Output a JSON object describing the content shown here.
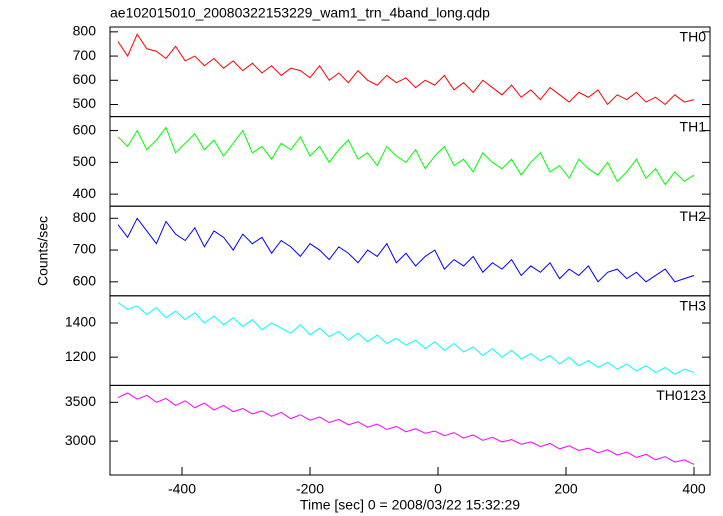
{
  "title": "ae102015010_20080322153229_wam1_trn_4band_long.qdp",
  "x_label": "Time [sec] 0 = 2008/03/22 15:32:29",
  "y_label": "Counts/sec",
  "chart_data": [
    {
      "type": "line",
      "xlim": [
        -512.5,
        425
      ],
      "ylim": [
        450,
        820
      ],
      "yticks": [
        500,
        600,
        700,
        800
      ],
      "x": [
        -500,
        -485,
        -470,
        -455,
        -440,
        -425,
        -410,
        -395,
        -380,
        -365,
        -350,
        -335,
        -320,
        -305,
        -290,
        -275,
        -260,
        -245,
        -230,
        -215,
        -200,
        -185,
        -170,
        -155,
        -140,
        -125,
        -110,
        -95,
        -80,
        -65,
        -50,
        -35,
        -20,
        -5,
        10,
        25,
        40,
        55,
        70,
        85,
        100,
        115,
        130,
        145,
        160,
        175,
        190,
        205,
        220,
        235,
        250,
        265,
        280,
        295,
        310,
        325,
        340,
        355,
        370,
        385,
        400
      ],
      "series": [
        {
          "name": "TH0",
          "color": "#ff0000",
          "values": [
            760,
            700,
            790,
            730,
            720,
            690,
            740,
            680,
            700,
            660,
            690,
            650,
            680,
            640,
            670,
            630,
            660,
            620,
            650,
            640,
            610,
            660,
            600,
            630,
            590,
            640,
            600,
            580,
            620,
            590,
            610,
            570,
            600,
            580,
            620,
            560,
            590,
            550,
            600,
            570,
            540,
            580,
            530,
            560,
            520,
            570,
            540,
            510,
            550,
            530,
            560,
            500,
            540,
            520,
            550,
            510,
            530,
            500,
            540,
            510,
            520
          ]
        }
      ]
    },
    {
      "type": "line",
      "xlim": [
        -512.5,
        425
      ],
      "ylim": [
        362,
        644
      ],
      "yticks": [
        400,
        500,
        600
      ],
      "x": [
        -500,
        -485,
        -470,
        -455,
        -440,
        -425,
        -410,
        -395,
        -380,
        -365,
        -350,
        -335,
        -320,
        -305,
        -290,
        -275,
        -260,
        -245,
        -230,
        -215,
        -200,
        -185,
        -170,
        -155,
        -140,
        -125,
        -110,
        -95,
        -80,
        -65,
        -50,
        -35,
        -20,
        -5,
        10,
        25,
        40,
        55,
        70,
        85,
        100,
        115,
        130,
        145,
        160,
        175,
        190,
        205,
        220,
        235,
        250,
        265,
        280,
        295,
        310,
        325,
        340,
        355,
        370,
        385,
        400
      ],
      "series": [
        {
          "name": "TH1",
          "color": "#00ff00",
          "values": [
            580,
            550,
            600,
            540,
            570,
            610,
            530,
            560,
            590,
            540,
            570,
            520,
            560,
            600,
            530,
            550,
            510,
            560,
            540,
            580,
            520,
            550,
            500,
            540,
            570,
            510,
            530,
            490,
            550,
            520,
            500,
            540,
            480,
            520,
            550,
            490,
            510,
            470,
            530,
            500,
            480,
            510,
            460,
            500,
            530,
            470,
            490,
            450,
            510,
            480,
            460,
            500,
            440,
            470,
            510,
            450,
            480,
            430,
            470,
            440,
            460
          ]
        }
      ]
    },
    {
      "type": "line",
      "xlim": [
        -512.5,
        425
      ],
      "ylim": [
        556,
        838
      ],
      "yticks": [
        600,
        700,
        800
      ],
      "x": [
        -500,
        -485,
        -470,
        -455,
        -440,
        -425,
        -410,
        -395,
        -380,
        -365,
        -350,
        -335,
        -320,
        -305,
        -290,
        -275,
        -260,
        -245,
        -230,
        -215,
        -200,
        -185,
        -170,
        -155,
        -140,
        -125,
        -110,
        -95,
        -80,
        -65,
        -50,
        -35,
        -20,
        -5,
        10,
        25,
        40,
        55,
        70,
        85,
        100,
        115,
        130,
        145,
        160,
        175,
        190,
        205,
        220,
        235,
        250,
        265,
        280,
        295,
        310,
        325,
        340,
        355,
        370,
        385,
        400
      ],
      "series": [
        {
          "name": "TH2",
          "color": "#0000ff",
          "values": [
            780,
            740,
            800,
            760,
            720,
            790,
            750,
            730,
            770,
            710,
            760,
            740,
            700,
            750,
            720,
            740,
            690,
            730,
            710,
            680,
            720,
            700,
            670,
            710,
            690,
            660,
            700,
            680,
            720,
            660,
            690,
            650,
            680,
            700,
            640,
            670,
            650,
            680,
            630,
            660,
            640,
            670,
            620,
            650,
            630,
            660,
            610,
            640,
            620,
            650,
            600,
            630,
            640,
            610,
            630,
            600,
            620,
            640,
            600,
            610,
            620
          ]
        }
      ]
    },
    {
      "type": "line",
      "xlim": [
        -512.5,
        425
      ],
      "ylim": [
        1035,
        1559
      ],
      "yticks": [
        1200,
        1400
      ],
      "x": [
        -500,
        -485,
        -470,
        -455,
        -440,
        -425,
        -410,
        -395,
        -380,
        -365,
        -350,
        -335,
        -320,
        -305,
        -290,
        -275,
        -260,
        -245,
        -230,
        -215,
        -200,
        -185,
        -170,
        -155,
        -140,
        -125,
        -110,
        -95,
        -80,
        -65,
        -50,
        -35,
        -20,
        -5,
        10,
        25,
        40,
        55,
        70,
        85,
        100,
        115,
        130,
        145,
        160,
        175,
        190,
        205,
        220,
        235,
        250,
        265,
        280,
        295,
        310,
        325,
        340,
        355,
        370,
        385,
        400
      ],
      "series": [
        {
          "name": "TH3",
          "color": "#00ffff",
          "values": [
            1520,
            1480,
            1500,
            1450,
            1490,
            1430,
            1470,
            1420,
            1460,
            1400,
            1440,
            1390,
            1430,
            1380,
            1420,
            1360,
            1400,
            1370,
            1340,
            1390,
            1330,
            1370,
            1320,
            1350,
            1300,
            1340,
            1290,
            1330,
            1280,
            1310,
            1270,
            1300,
            1250,
            1290,
            1240,
            1280,
            1230,
            1260,
            1210,
            1250,
            1200,
            1240,
            1190,
            1220,
            1180,
            1210,
            1160,
            1200,
            1150,
            1180,
            1140,
            1170,
            1130,
            1160,
            1120,
            1150,
            1110,
            1140,
            1100,
            1130,
            1110
          ]
        }
      ]
    },
    {
      "type": "line",
      "xlim": [
        -512.5,
        425
      ],
      "ylim": [
        2564,
        3718
      ],
      "yticks": [
        3000,
        3500
      ],
      "xticks": [
        -400,
        -200,
        0,
        200,
        400
      ],
      "x": [
        -500,
        -485,
        -470,
        -455,
        -440,
        -425,
        -410,
        -395,
        -380,
        -365,
        -350,
        -335,
        -320,
        -305,
        -290,
        -275,
        -260,
        -245,
        -230,
        -215,
        -200,
        -185,
        -170,
        -155,
        -140,
        -125,
        -110,
        -95,
        -80,
        -65,
        -50,
        -35,
        -20,
        -5,
        10,
        25,
        40,
        55,
        70,
        85,
        100,
        115,
        130,
        145,
        160,
        175,
        190,
        205,
        220,
        235,
        250,
        265,
        280,
        295,
        310,
        325,
        340,
        355,
        370,
        385,
        400
      ],
      "series": [
        {
          "name": "TH0123",
          "color": "#ff00ff",
          "values": [
            3560,
            3620,
            3540,
            3590,
            3500,
            3550,
            3460,
            3520,
            3430,
            3490,
            3400,
            3460,
            3380,
            3420,
            3350,
            3390,
            3320,
            3370,
            3290,
            3340,
            3270,
            3310,
            3240,
            3280,
            3210,
            3250,
            3180,
            3220,
            3150,
            3190,
            3120,
            3160,
            3100,
            3130,
            3070,
            3110,
            3040,
            3080,
            3010,
            3050,
            2990,
            3020,
            2960,
            2990,
            2930,
            2970,
            2900,
            2940,
            2880,
            2910,
            2850,
            2890,
            2820,
            2860,
            2790,
            2830,
            2760,
            2800,
            2730,
            2760,
            2700
          ]
        }
      ]
    }
  ]
}
